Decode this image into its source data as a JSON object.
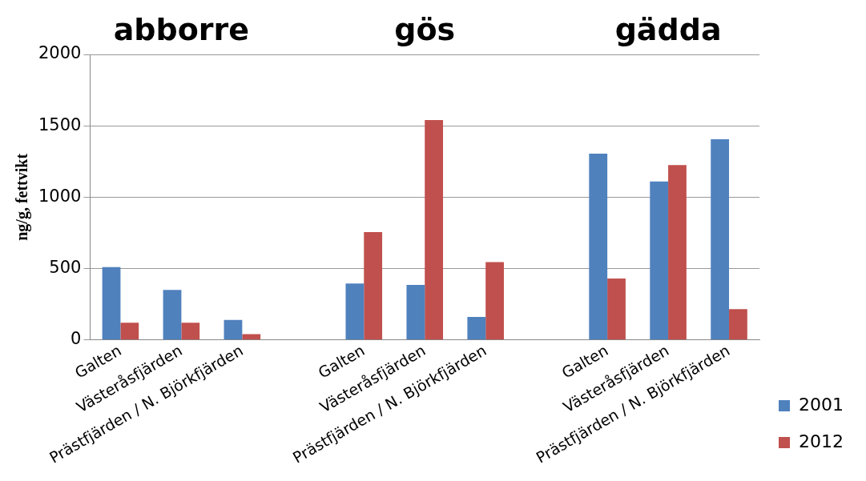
{
  "chart_data": {
    "type": "bar",
    "ylabel": "ng/g, fettvikt",
    "categories": [
      "Galten",
      "Västeråsfjärden",
      "Prästfjärden / N. Björkfjärden",
      null,
      "Galten",
      "Västeråsfjärden",
      "Prästfjärden / N. Björkfjärden",
      null,
      "Galten",
      "Västeråsfjärden",
      "Prästfjärden / N. Björkfjärden"
    ],
    "series": [
      {
        "name": "2001",
        "color": "#4f81bd",
        "values": [
          510,
          350,
          140,
          null,
          395,
          385,
          160,
          null,
          1305,
          1110,
          1405
        ]
      },
      {
        "name": "2012",
        "color": "#c0504d",
        "values": [
          120,
          120,
          40,
          null,
          755,
          1540,
          545,
          null,
          430,
          1225,
          215
        ]
      }
    ],
    "ylim": [
      0,
      2000
    ],
    "yticks": [
      0,
      500,
      1000,
      1500,
      2000
    ],
    "grid": "y",
    "legend": "right",
    "annotations": [
      "abborre",
      "gös",
      "gädda"
    ]
  }
}
